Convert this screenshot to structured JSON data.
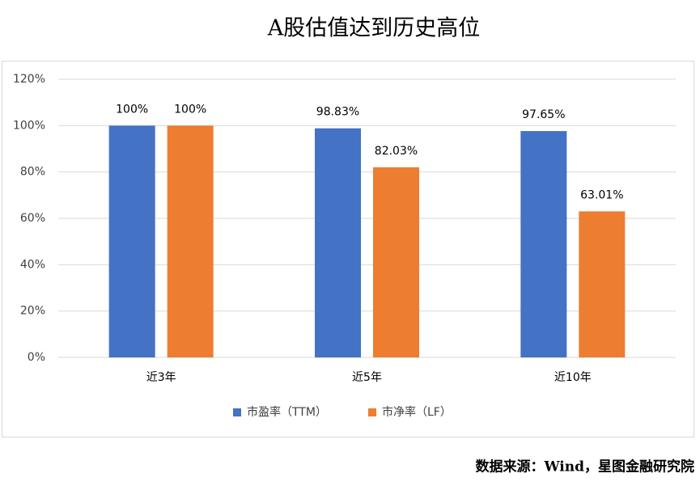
{
  "chart_data": {
    "type": "bar",
    "title": "A股估值达到历史高位",
    "categories": [
      "近3年",
      "近5年",
      "近10年"
    ],
    "series": [
      {
        "name": "市盈率（TTM）",
        "color": "#4472c4",
        "values": [
          100,
          98.83,
          97.65
        ],
        "value_labels": [
          "100%",
          "98.83%",
          "97.65%"
        ]
      },
      {
        "name": "市净率（LF）",
        "color": "#ed7d31",
        "values": [
          100,
          82.03,
          63.01
        ],
        "value_labels": [
          "100%",
          "82.03%",
          "63.01%"
        ]
      }
    ],
    "ylim": [
      0,
      120
    ],
    "yticks": [
      {
        "value": 0,
        "label": "0%"
      },
      {
        "value": 20,
        "label": "20%"
      },
      {
        "value": 40,
        "label": "40%"
      },
      {
        "value": 60,
        "label": "60%"
      },
      {
        "value": 80,
        "label": "80%"
      },
      {
        "value": 100,
        "label": "100%"
      },
      {
        "value": 120,
        "label": "120%"
      }
    ],
    "grid": true,
    "legend": "bottom",
    "source": "数据来源：Wind，星图金融研究院"
  }
}
